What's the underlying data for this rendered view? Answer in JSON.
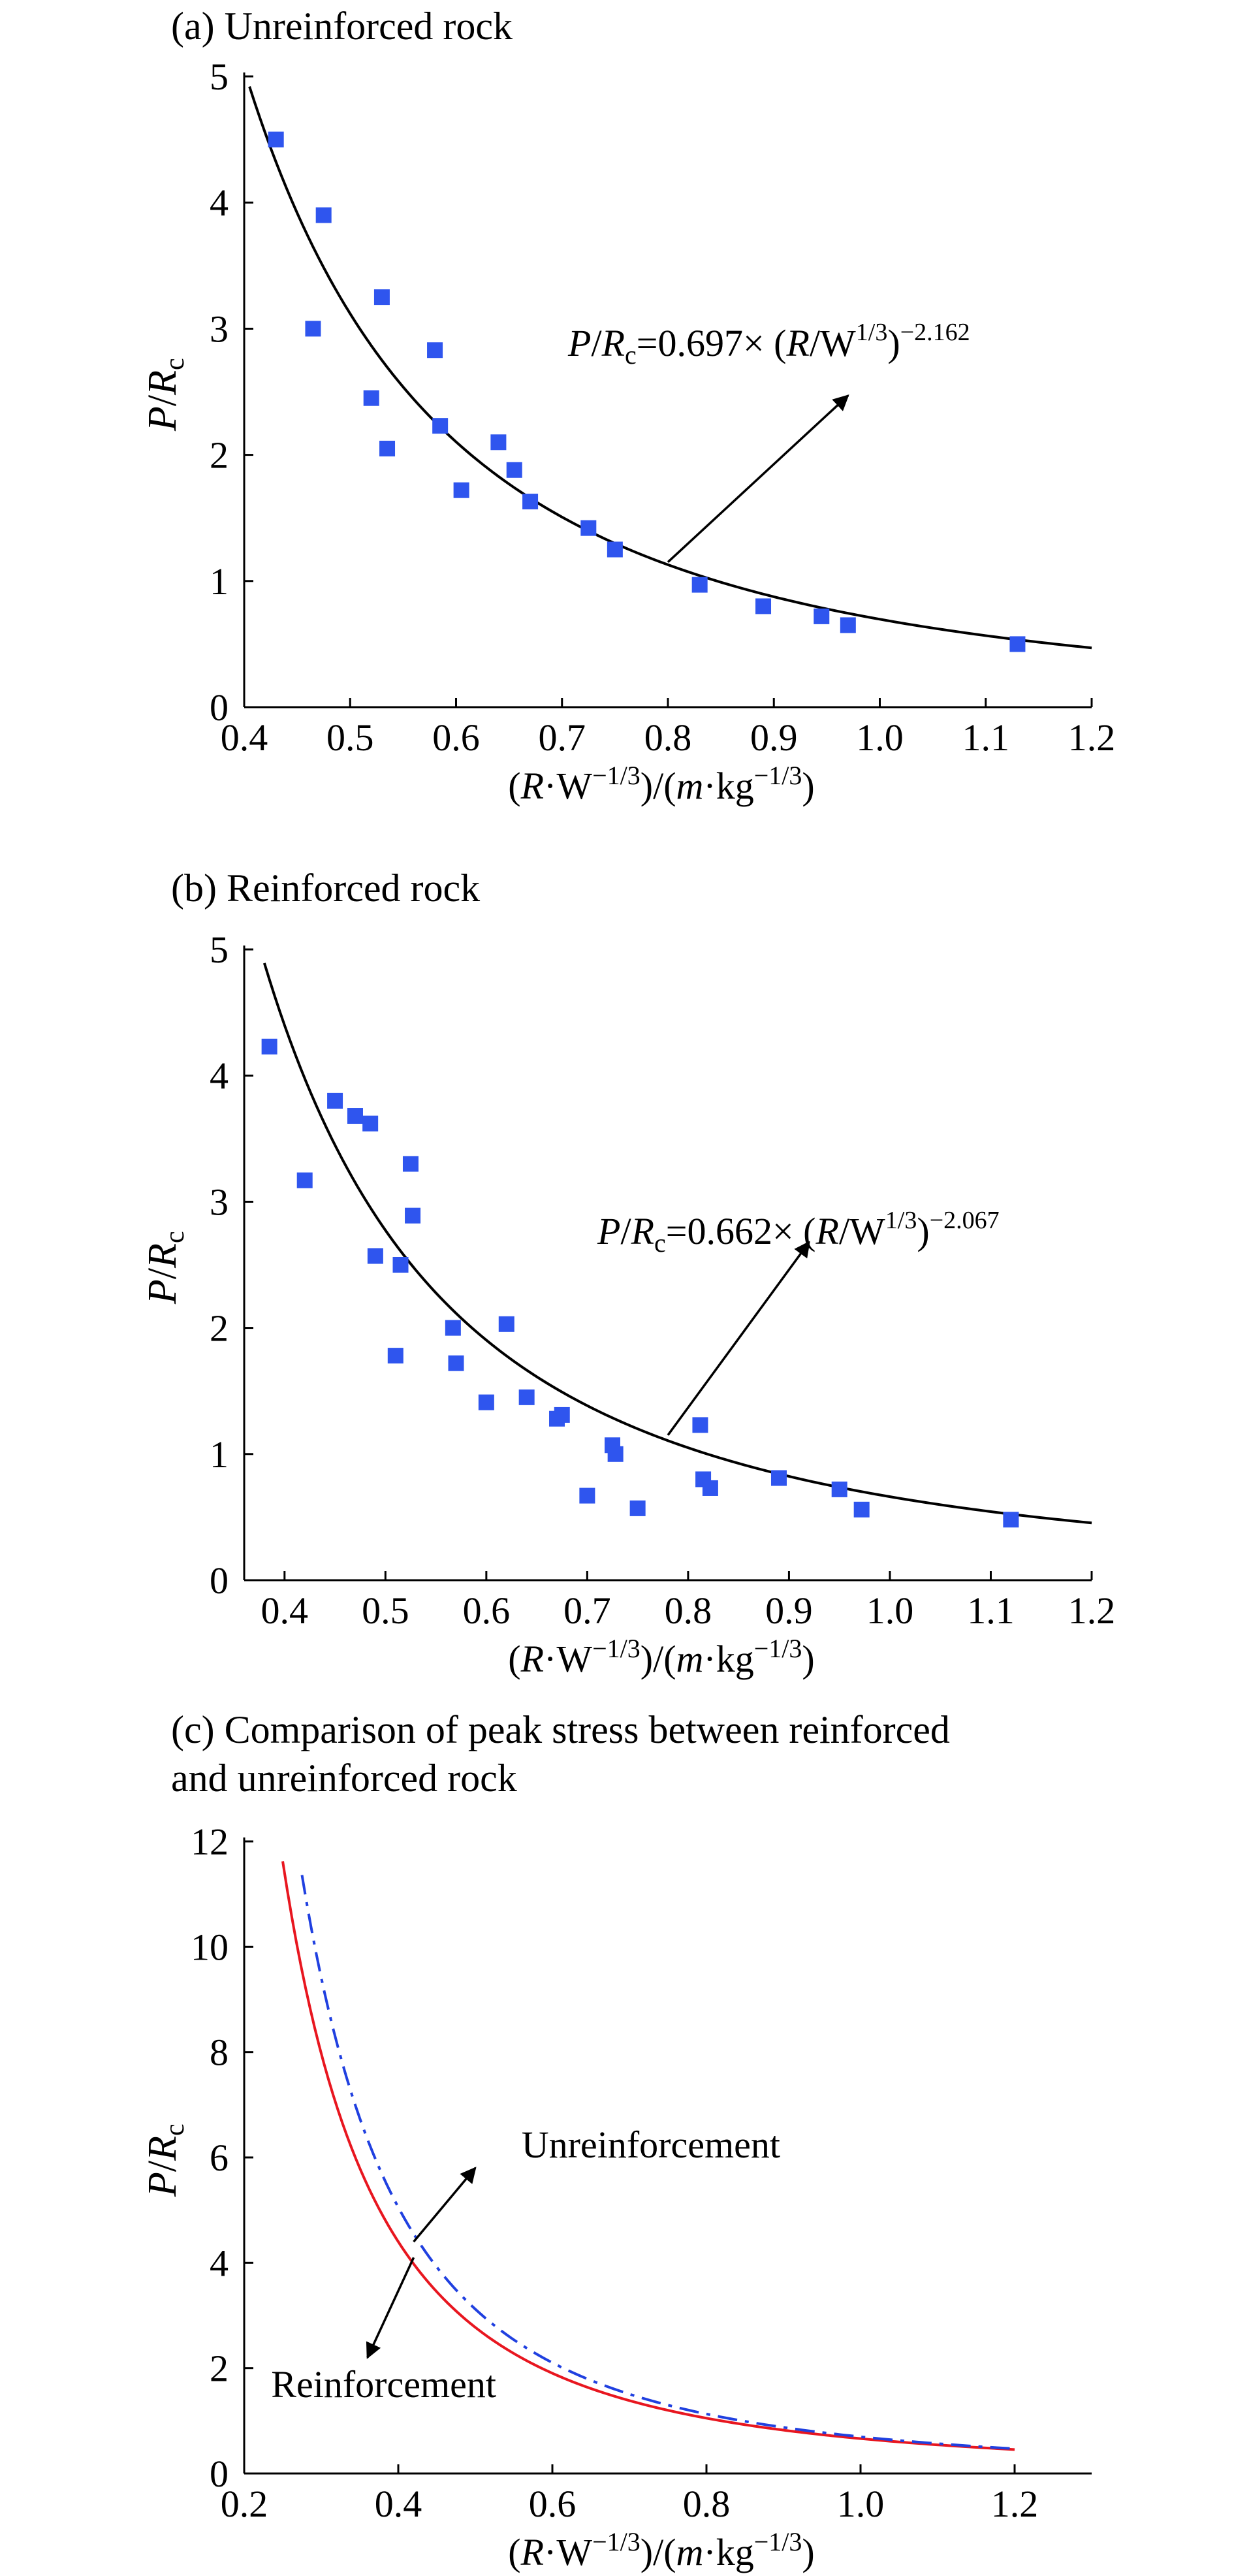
{
  "colors": {
    "marker": "#2f55ee",
    "fit_line": "#000000",
    "reinforcement": "#e8161f",
    "unreinforcement": "#2040e0"
  },
  "chart_data": [
    {
      "type": "scatter",
      "title": "(a) Unreinforced rock",
      "ylabel_main": "P",
      "ylabel_slash": "/",
      "ylabel_R": "R",
      "ylabel_sub": "c",
      "xlabel_parts": {
        "p1": "(",
        "R": "R",
        "p2": "·W",
        "e1": "−1/3",
        "p3": ")/(",
        "m": "m",
        "p4": "·kg",
        "e2": "−1/3",
        "p5": ")"
      },
      "xlim": [
        0.4,
        1.2
      ],
      "ylim": [
        0,
        5
      ],
      "x_ticks": [
        "0.4",
        "0.5",
        "0.6",
        "0.7",
        "0.8",
        "0.9",
        "1.0",
        "1.1",
        "1.2"
      ],
      "y_ticks": [
        "0",
        "1",
        "2",
        "3",
        "4",
        "5"
      ],
      "points": [
        [
          0.43,
          4.5
        ],
        [
          0.465,
          3.0
        ],
        [
          0.475,
          3.9
        ],
        [
          0.52,
          2.45
        ],
        [
          0.53,
          3.25
        ],
        [
          0.535,
          2.05
        ],
        [
          0.58,
          2.83
        ],
        [
          0.585,
          2.23
        ],
        [
          0.605,
          1.72
        ],
        [
          0.64,
          2.1
        ],
        [
          0.655,
          1.88
        ],
        [
          0.67,
          1.63
        ],
        [
          0.725,
          1.42
        ],
        [
          0.75,
          1.25
        ],
        [
          0.83,
          0.97
        ],
        [
          0.89,
          0.8
        ],
        [
          0.945,
          0.72
        ],
        [
          0.97,
          0.65
        ],
        [
          1.13,
          0.5
        ]
      ],
      "fit": {
        "a": 0.697,
        "b": -2.162,
        "x_range": [
          0.4,
          1.2
        ]
      },
      "equation": {
        "P": "P",
        "slash": "/",
        "R": "R",
        "sub": "c",
        "coef": "=0.697× (",
        "R2": "R",
        "W": "/W",
        "w_exp": "1/3",
        "close": ")",
        "exp": "−2.162"
      },
      "annotation_arrow": {
        "from": [
          0.8,
          1.15
        ],
        "to": [
          0.97,
          2.47
        ]
      }
    },
    {
      "type": "scatter",
      "title": "(b) Reinforced rock",
      "ylabel_main": "P",
      "ylabel_slash": "/",
      "ylabel_R": "R",
      "ylabel_sub": "c",
      "xlabel_parts": {
        "p1": "(",
        "R": "R",
        "p2": "·W",
        "e1": "−1/3",
        "p3": ")/(",
        "m": "m",
        "p4": "·kg",
        "e2": "−1/3",
        "p5": ")"
      },
      "xlim": [
        0.36,
        1.2
      ],
      "ylim": [
        0,
        5
      ],
      "x_ticks": [
        "0.4",
        "0.5",
        "0.6",
        "0.7",
        "0.8",
        "0.9",
        "1.0",
        "1.1",
        "1.2"
      ],
      "y_ticks": [
        "0",
        "1",
        "2",
        "3",
        "4",
        "5"
      ],
      "points": [
        [
          0.385,
          4.23
        ],
        [
          0.42,
          3.17
        ],
        [
          0.45,
          3.8
        ],
        [
          0.47,
          3.68
        ],
        [
          0.485,
          3.62
        ],
        [
          0.49,
          2.57
        ],
        [
          0.51,
          1.78
        ],
        [
          0.515,
          2.5
        ],
        [
          0.525,
          3.3
        ],
        [
          0.527,
          2.89
        ],
        [
          0.567,
          2.0
        ],
        [
          0.57,
          1.72
        ],
        [
          0.6,
          1.41
        ],
        [
          0.62,
          2.03
        ],
        [
          0.64,
          1.45
        ],
        [
          0.67,
          1.28
        ],
        [
          0.675,
          1.31
        ],
        [
          0.7,
          0.67
        ],
        [
          0.725,
          1.07
        ],
        [
          0.728,
          1.0
        ],
        [
          0.75,
          0.57
        ],
        [
          0.812,
          1.23
        ],
        [
          0.815,
          0.8
        ],
        [
          0.822,
          0.73
        ],
        [
          0.89,
          0.81
        ],
        [
          0.95,
          0.72
        ],
        [
          0.972,
          0.56
        ],
        [
          1.12,
          0.48
        ]
      ],
      "fit": {
        "a": 0.662,
        "b": -2.067,
        "x_range": [
          0.38,
          1.2
        ]
      },
      "equation": {
        "P": "P",
        "slash": "/",
        "R": "R",
        "sub": "c",
        "coef": "=0.662× (",
        "R2": "R",
        "W": "/W",
        "w_exp": "1/3",
        "close": ")",
        "exp": "−2.067"
      },
      "annotation_arrow": {
        "from": [
          0.78,
          1.15
        ],
        "to": [
          0.92,
          2.68
        ]
      }
    },
    {
      "type": "line",
      "title_line1": "(c) Comparison of peak stress between reinforced",
      "title_line2": "and unreinforced rock",
      "ylabel_main": "P",
      "ylabel_slash": "/",
      "ylabel_R": "R",
      "ylabel_sub": "c",
      "xlabel_parts": {
        "p1": "(",
        "R": "R",
        "p2": "·W",
        "e1": "−1/3",
        "p3": ")/(",
        "m": "m",
        "p4": "·kg",
        "e2": "−1/3",
        "p5": ")"
      },
      "xlim": [
        0.2,
        1.3
      ],
      "ylim": [
        0,
        12
      ],
      "x_ticks": [
        "0.2",
        "0.4",
        "0.6",
        "0.8",
        "1.0",
        "1.2"
      ],
      "y_ticks": [
        "0",
        "2",
        "4",
        "6",
        "8",
        "10",
        "12"
      ],
      "series": [
        {
          "name": "Reinforcement",
          "style": "solid",
          "a": 0.662,
          "b": -2.067,
          "x_range": [
            0.25,
            1.2
          ]
        },
        {
          "name": "Unreinforcement",
          "style": "dashdot",
          "a": 0.697,
          "b": -2.162,
          "x_range": [
            0.275,
            1.2
          ]
        }
      ],
      "annotations": {
        "unreinforcement": {
          "label": "Unreinforcement",
          "arrow_from": [
            0.42,
            4.4
          ],
          "arrow_to": [
            0.5,
            5.8
          ]
        },
        "reinforcement": {
          "label": "Reinforcement",
          "arrow_from": [
            0.42,
            4.1
          ],
          "arrow_to": [
            0.36,
            2.2
          ]
        }
      }
    }
  ]
}
